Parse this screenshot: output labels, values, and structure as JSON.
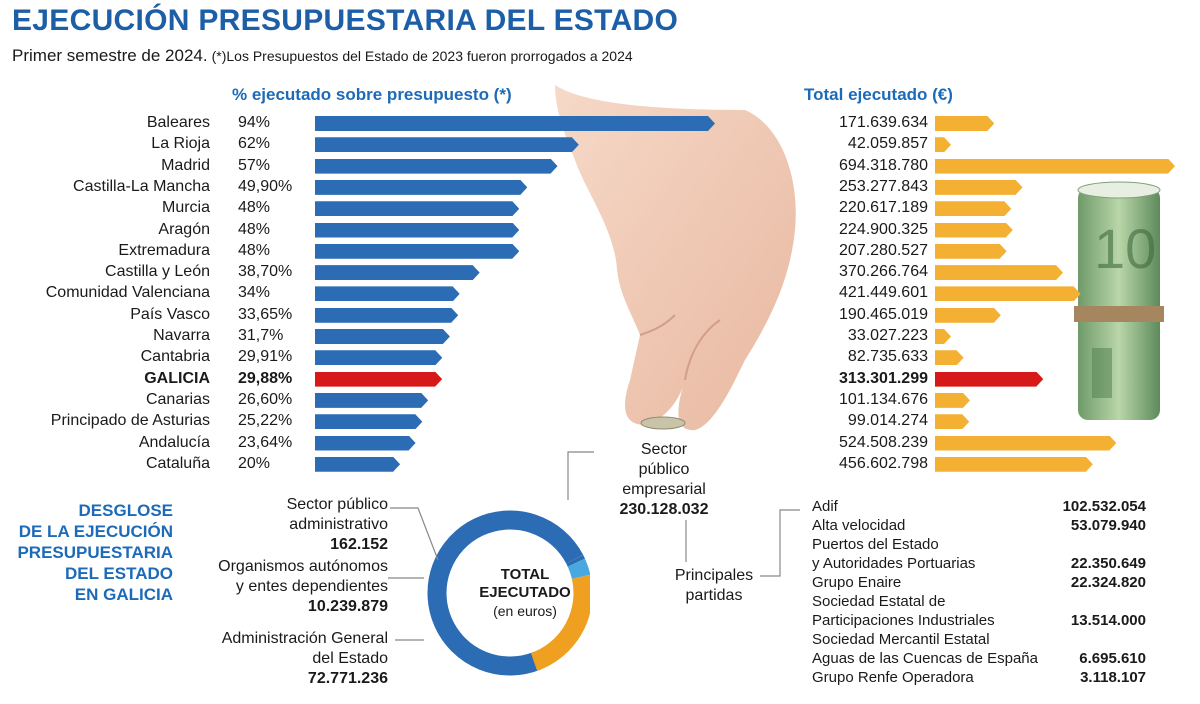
{
  "header": {
    "title": "EJECUCIÓN PRESUPUESTARIA DEL ESTADO",
    "subtitle": "Primer semestre de 2024.",
    "note": "(*)Los Presupuestos del Estado de 2023 fueron prorrogados a 2024"
  },
  "chart_data": [
    {
      "type": "bar",
      "title": "% ejecutado sobre presupuesto (*)",
      "categories": [
        "Baleares",
        "La Rioja",
        "Madrid",
        "Castilla-La Mancha",
        "Murcia",
        "Aragón",
        "Extremadura",
        "Castilla y León",
        "Comunidad Valenciana",
        "País Vasco",
        "Navarra",
        "Cantabria",
        "GALICIA",
        "Canarias",
        "Principado de Asturias",
        "Andalucía",
        "Cataluña"
      ],
      "value_labels": [
        "94%",
        "62%",
        "57%",
        "49,90%",
        "48%",
        "48%",
        "48%",
        "38,70%",
        "34%",
        "33,65%",
        "31,7%",
        "29,91%",
        "29,88%",
        "26,60%",
        "25,22%",
        "23,64%",
        "20%"
      ],
      "values": [
        94,
        62,
        57,
        49.9,
        48,
        48,
        48,
        38.7,
        34,
        33.65,
        31.7,
        29.91,
        29.88,
        26.6,
        25.22,
        23.64,
        20
      ],
      "highlight": "GALICIA",
      "xlim": [
        0,
        94
      ],
      "colors": {
        "bar": "#2b6cb5",
        "highlight": "#d61a1a"
      }
    },
    {
      "type": "bar",
      "title": "Total ejecutado (€)",
      "categories": [
        "Baleares",
        "La Rioja",
        "Madrid",
        "Castilla-La Mancha",
        "Murcia",
        "Aragón",
        "Extremadura",
        "Castilla y León",
        "Comunidad Valenciana",
        "País Vasco",
        "Navarra",
        "Cantabria",
        "GALICIA",
        "Canarias",
        "Principado de Asturias",
        "Andalucía",
        "Cataluña"
      ],
      "value_labels": [
        "171.639.634",
        "42.059.857",
        "694.318.780",
        "253.277.843",
        "220.617.189",
        "224.900.325",
        "207.280.527",
        "370.266.764",
        "421.449.601",
        "190.465.019",
        "33.027.223",
        "82.735.633",
        "313.301.299",
        "101.134.676",
        "99.014.274",
        "524.508.239",
        "456.602.798"
      ],
      "values": [
        171639634,
        42059857,
        694318780,
        253277843,
        220617189,
        224900325,
        207280527,
        370266764,
        421449601,
        190465019,
        33027223,
        82735633,
        313301299,
        101134676,
        99014274,
        524508239,
        456602798
      ],
      "highlight": "GALICIA",
      "xlim": [
        0,
        694318780
      ],
      "colors": {
        "bar": "#f3b033",
        "highlight": "#d61a1a"
      }
    },
    {
      "type": "pie",
      "title_lines": [
        "TOTAL",
        "EJECUTADO"
      ],
      "unit_label": "(en euros)",
      "slices": [
        {
          "name_lines": [
            "Sector público",
            "empresarial"
          ],
          "name_prefix": "Sector",
          "value_label": "230.128.032",
          "value": 230128032,
          "color": "#2b6cb5"
        },
        {
          "name_lines": [
            "Sector público",
            "administrativo"
          ],
          "value_label": "162.152",
          "value": 162152,
          "color": "#2b6cb5"
        },
        {
          "name_lines": [
            "Organismos autónomos",
            "y entes dependientes"
          ],
          "value_label": "10.239.879",
          "value": 10239879,
          "color": "#4aa8e0"
        },
        {
          "name_lines": [
            "Administración General",
            "del Estado"
          ],
          "value_label": "72.771.236",
          "value": 72771236,
          "color": "#f0a020"
        }
      ]
    }
  ],
  "breakdown": {
    "title_lines": [
      "DESGLOSE",
      "DE LA EJECUCIÓN",
      "PRESUPUESTARIA",
      "DEL ESTADO",
      "EN GALICIA"
    ],
    "principales_lines": [
      "Principales",
      "partidas"
    ],
    "partidas": [
      {
        "lines": [
          "Adif"
        ],
        "value": "102.532.054"
      },
      {
        "lines": [
          "Alta velocidad"
        ],
        "value": "53.079.940"
      },
      {
        "lines": [
          "Puertos del Estado",
          "y Autoridades Portuarias"
        ],
        "value": "22.350.649"
      },
      {
        "lines": [
          "Grupo Enaire"
        ],
        "value": "22.324.820"
      },
      {
        "lines": [
          "Sociedad Estatal de",
          "Participaciones Industriales"
        ],
        "value": "13.514.000"
      },
      {
        "lines": [
          "Sociedad Mercantil Estatal",
          "Aguas de las Cuencas de España"
        ],
        "value": "6.695.610"
      },
      {
        "lines": [
          "Grupo Renfe Operadora"
        ],
        "value": "3.118.107"
      }
    ]
  }
}
